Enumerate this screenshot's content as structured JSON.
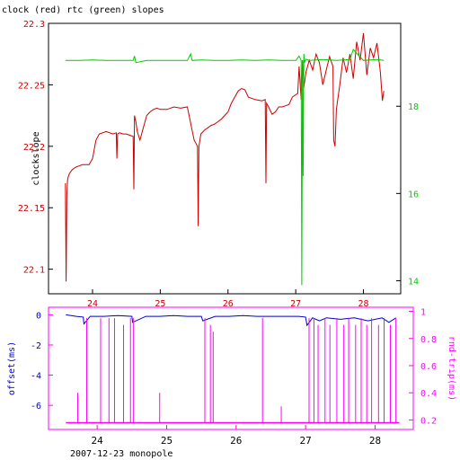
{
  "chart_data": [
    {
      "type": "line",
      "title": "clock (red) rtc (green) slopes",
      "ylabel": "clockslope",
      "x_ticks": [
        "24",
        "25",
        "26",
        "27",
        "28"
      ],
      "x_tick_values": [
        24,
        25,
        26,
        27,
        28
      ],
      "xlim": [
        23.35,
        28.55
      ],
      "ylim_left": [
        22.08,
        22.3
      ],
      "y_ticks_left": [
        "22.1",
        "22.15",
        "22.2",
        "22.25",
        "22.3"
      ],
      "y_tick_values_left": [
        22.1,
        22.15,
        22.2,
        22.25,
        22.3
      ],
      "ylim_right": [
        13.7,
        19.9
      ],
      "y_ticks_right": [
        "14",
        "16",
        "18"
      ],
      "y_tick_values_right": [
        14,
        16,
        18
      ],
      "colors": {
        "left_axis": "#cc0000",
        "right_axis": "#00cc00",
        "frame": "#000000"
      },
      "series": [
        {
          "axis": "left",
          "color": "#cc0000",
          "x": [
            23.6,
            23.61,
            23.62,
            23.63,
            23.64,
            23.66,
            23.7,
            23.75,
            23.8,
            23.85,
            23.9,
            23.95,
            24.0,
            24.05,
            24.1,
            24.2,
            24.3,
            24.35,
            24.36,
            24.37,
            24.4,
            24.45,
            24.5,
            24.55,
            24.6,
            24.61,
            24.62,
            24.64,
            24.66,
            24.7,
            24.75,
            24.8,
            24.85,
            24.9,
            24.95,
            25.0,
            25.1,
            25.2,
            25.3,
            25.4,
            25.5,
            25.55,
            25.56,
            25.57,
            25.6,
            25.65,
            25.7,
            25.75,
            25.8,
            25.85,
            25.9,
            25.95,
            26.0,
            26.05,
            26.1,
            26.15,
            26.2,
            26.25,
            26.3,
            26.4,
            26.5,
            26.55,
            26.56,
            26.57,
            26.6,
            26.65,
            26.7,
            26.75,
            26.8,
            26.85,
            26.9,
            26.95,
            27.0,
            27.03,
            27.05,
            27.08,
            27.1,
            27.12,
            27.15,
            27.2,
            27.25,
            27.3,
            27.35,
            27.4,
            27.45,
            27.5,
            27.55,
            27.56,
            27.58,
            27.6,
            27.65,
            27.7,
            27.75,
            27.8,
            27.85,
            27.9,
            27.95,
            28.0,
            28.05,
            28.1,
            28.15,
            28.2,
            28.25,
            28.28,
            28.3
          ],
          "y": [
            22.17,
            22.09,
            22.16,
            22.172,
            22.175,
            22.178,
            22.181,
            22.183,
            22.184,
            22.185,
            22.185,
            22.185,
            22.19,
            22.205,
            22.21,
            22.212,
            22.21,
            22.211,
            22.19,
            22.21,
            22.211,
            22.21,
            22.21,
            22.209,
            22.208,
            22.165,
            22.225,
            22.22,
            22.212,
            22.205,
            22.215,
            22.225,
            22.228,
            22.23,
            22.231,
            22.23,
            22.23,
            22.232,
            22.231,
            22.232,
            22.205,
            22.2,
            22.135,
            22.2,
            22.21,
            22.213,
            22.215,
            22.217,
            22.218,
            22.22,
            22.222,
            22.225,
            22.228,
            22.235,
            22.24,
            22.245,
            22.247,
            22.246,
            22.24,
            22.238,
            22.237,
            22.238,
            22.17,
            22.235,
            22.232,
            22.226,
            22.228,
            22.232,
            22.232,
            22.233,
            22.234,
            22.24,
            22.242,
            22.243,
            22.265,
            22.238,
            22.27,
            22.248,
            22.26,
            22.27,
            22.262,
            22.275,
            22.268,
            22.25,
            22.262,
            22.273,
            22.265,
            22.205,
            22.2,
            22.23,
            22.25,
            22.272,
            22.26,
            22.275,
            22.255,
            22.285,
            22.27,
            22.292,
            22.258,
            22.28,
            22.272,
            22.284,
            22.26,
            22.237,
            22.245
          ]
        },
        {
          "axis": "right",
          "color": "#00cc00",
          "x": [
            23.6,
            23.8,
            24.0,
            24.2,
            24.4,
            24.6,
            24.62,
            24.64,
            24.8,
            25.0,
            25.2,
            25.4,
            25.45,
            25.47,
            25.6,
            25.8,
            26.0,
            26.2,
            26.4,
            26.6,
            26.8,
            27.0,
            27.05,
            27.08,
            27.09,
            27.1,
            27.11,
            27.12,
            27.13,
            27.15,
            27.2,
            27.4,
            27.6,
            27.8,
            27.85,
            28.0,
            28.2,
            28.3
          ],
          "y": [
            19.05,
            19.05,
            19.06,
            19.05,
            19.05,
            19.05,
            19.15,
            19.0,
            19.05,
            19.05,
            19.05,
            19.05,
            19.2,
            19.05,
            19.06,
            19.05,
            19.05,
            19.06,
            19.05,
            19.06,
            19.05,
            19.05,
            19.15,
            19.05,
            13.9,
            19.05,
            16.4,
            19.2,
            19.0,
            19.08,
            19.05,
            19.07,
            19.05,
            19.07,
            19.3,
            19.05,
            19.07,
            19.05
          ]
        }
      ]
    },
    {
      "type": "line",
      "xlabel": "2007-12-23 monopole",
      "x_ticks": [
        "24",
        "25",
        "26",
        "27",
        "28"
      ],
      "x_tick_values": [
        24,
        25,
        26,
        27,
        28
      ],
      "xlim": [
        23.3,
        28.55
      ],
      "ylim_left": [
        -7.6,
        0.5
      ],
      "y_ticks_left": [
        "0",
        "-2",
        "-4",
        "-6"
      ],
      "y_tick_values_left": [
        0,
        -2,
        -4,
        -6
      ],
      "ylabel_left": "offset(ms)",
      "ylim_right": [
        0.13,
        1.03
      ],
      "y_ticks_right": [
        "1",
        "0.8",
        "0.6",
        "0.4",
        "0.2"
      ],
      "y_tick_values_right": [
        1,
        0.8,
        0.6,
        0.4,
        0.2
      ],
      "ylabel_right": "rnd-trip(ms)",
      "colors": {
        "left_axis": "#0000cc",
        "right_axis": "#ff00ff",
        "frame": "#ff00ff"
      },
      "series": [
        {
          "axis": "left",
          "color": "#0000cc",
          "x": [
            23.55,
            23.7,
            23.8,
            23.81,
            23.9,
            24.1,
            24.3,
            24.5,
            24.51,
            24.7,
            24.9,
            25.1,
            25.3,
            25.5,
            25.52,
            25.7,
            25.9,
            26.1,
            26.3,
            26.5,
            26.7,
            26.9,
            27.0,
            27.02,
            27.1,
            27.2,
            27.3,
            27.5,
            27.7,
            27.9,
            28.1,
            28.2,
            28.3
          ],
          "y": [
            0.0,
            -0.1,
            -0.15,
            -0.6,
            -0.1,
            -0.1,
            -0.05,
            -0.1,
            -0.5,
            -0.1,
            -0.1,
            -0.05,
            -0.1,
            -0.1,
            -0.4,
            -0.1,
            -0.1,
            -0.05,
            -0.1,
            -0.1,
            -0.1,
            -0.1,
            -0.15,
            -0.7,
            -0.2,
            -0.4,
            -0.2,
            -0.3,
            -0.2,
            -0.4,
            -0.2,
            -0.5,
            -0.2
          ]
        },
        {
          "axis": "right",
          "color": "#ff00ff",
          "baseline": 0.18,
          "spike_x": [
            23.72,
            23.85,
            24.05,
            24.17,
            24.25,
            24.38,
            24.48,
            24.52,
            24.9,
            25.55,
            25.63,
            25.67,
            26.38,
            26.65,
            27.05,
            27.12,
            27.18,
            27.28,
            27.35,
            27.45,
            27.55,
            27.62,
            27.72,
            27.8,
            27.88,
            27.95,
            28.05,
            28.13,
            28.22,
            28.3
          ],
          "spike_y": [
            0.4,
            0.95,
            0.95,
            0.95,
            0.95,
            0.9,
            0.95,
            0.95,
            0.4,
            0.95,
            0.9,
            0.85,
            0.95,
            0.3,
            0.95,
            0.95,
            0.9,
            0.95,
            0.9,
            0.95,
            0.9,
            0.95,
            0.9,
            0.95,
            0.9,
            0.95,
            0.9,
            0.95,
            0.9,
            0.95
          ]
        }
      ]
    }
  ]
}
